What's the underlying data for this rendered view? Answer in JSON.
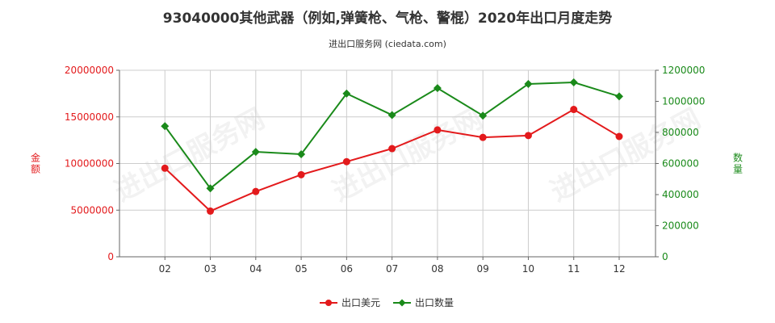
{
  "header": {
    "title": "93040000其他武器（例如,弹簧枪、气枪、警棍）2020年出口月度走势",
    "subtitle": "进出口服务网 (ciedata.com)"
  },
  "watermark": "进出口服务网",
  "colors": {
    "usd": "#e31a1c",
    "qty": "#1a8a1a",
    "grid": "#cccccc",
    "axis": "#666666"
  },
  "chart_data": {
    "type": "line",
    "categories": [
      "02",
      "03",
      "04",
      "05",
      "06",
      "07",
      "08",
      "09",
      "10",
      "11",
      "12"
    ],
    "series": [
      {
        "name": "出口美元",
        "axis": "left",
        "values": [
          9500000,
          4900000,
          7000000,
          8800000,
          10200000,
          11600000,
          13600000,
          12800000,
          13000000,
          15800000,
          12900000
        ]
      },
      {
        "name": "出口数量",
        "axis": "right",
        "values": [
          840000,
          440000,
          675000,
          660000,
          1050000,
          912000,
          1085000,
          908000,
          1112000,
          1122000,
          1032000
        ]
      }
    ],
    "y_left": {
      "label": "金额",
      "ylim": [
        0,
        20000000
      ],
      "ticks": [
        "0",
        "5000000",
        "10000000",
        "15000000",
        "20000000"
      ]
    },
    "y_right": {
      "label": "数量",
      "ylim": [
        0,
        1200000
      ],
      "ticks": [
        "0",
        "200000",
        "400000",
        "600000",
        "800000",
        "1000000",
        "1200000"
      ]
    },
    "grid": true,
    "legend": "bottom-center"
  }
}
